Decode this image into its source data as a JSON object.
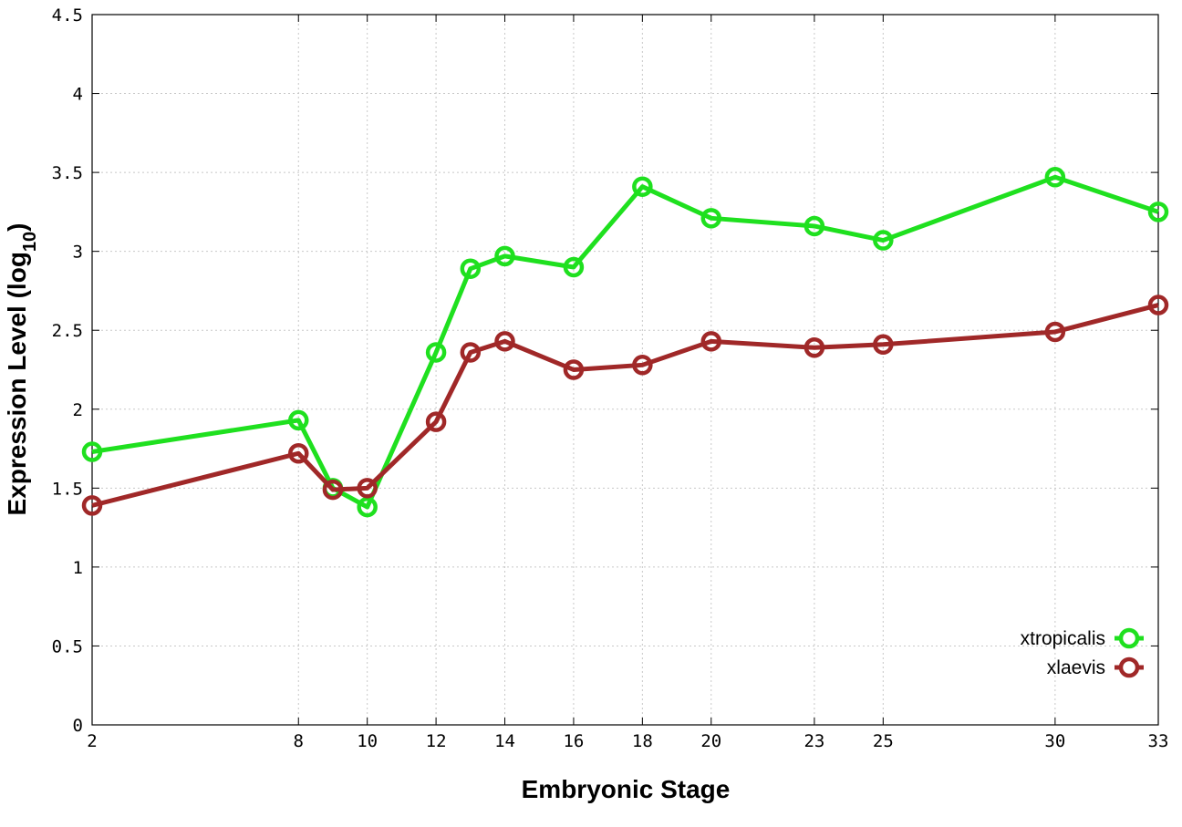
{
  "chart_data": {
    "type": "line",
    "title": "",
    "xlabel": "Embryonic Stage",
    "ylabel": "Expression Level (log",
    "ylabel_sub": "10",
    "ylabel_close": ")",
    "xlim": [
      2,
      33
    ],
    "ylim": [
      0,
      4.5
    ],
    "xticks": [
      2,
      8,
      10,
      12,
      14,
      16,
      18,
      20,
      23,
      25,
      30,
      33
    ],
    "yticks": [
      0,
      0.5,
      1,
      1.5,
      2,
      2.5,
      3,
      3.5,
      4,
      4.5
    ],
    "ytick_labels": [
      "0",
      "0.5",
      "1",
      "1.5",
      "2",
      "2.5",
      "3",
      "3.5",
      "4",
      "4.5"
    ],
    "grid": true,
    "legend_position": "bottom-right",
    "x": [
      2,
      8,
      9,
      10,
      12,
      13,
      14,
      16,
      18,
      20,
      23,
      25,
      30,
      33
    ],
    "series": [
      {
        "name": "xtropicalis",
        "color": "#1fe01f",
        "values": [
          1.73,
          1.93,
          1.5,
          1.38,
          2.36,
          2.89,
          2.97,
          2.9,
          3.41,
          3.21,
          3.16,
          3.07,
          3.47,
          3.25
        ]
      },
      {
        "name": "xlaevis",
        "color": "#a02828",
        "values": [
          1.39,
          1.72,
          1.49,
          1.5,
          1.92,
          2.36,
          2.43,
          2.25,
          2.28,
          2.43,
          2.39,
          2.41,
          2.49,
          2.66
        ]
      }
    ]
  }
}
